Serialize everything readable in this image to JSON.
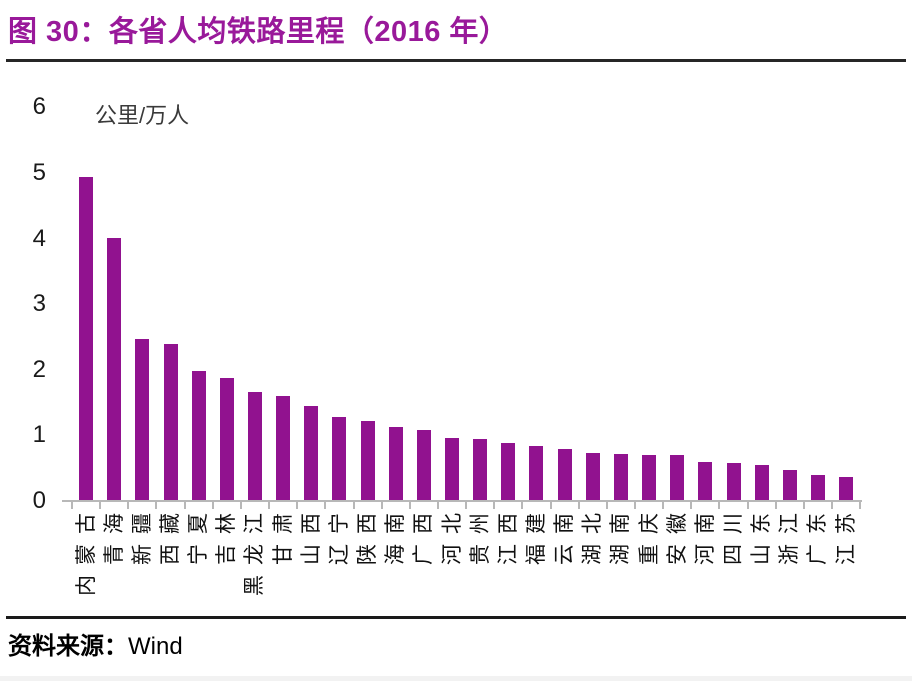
{
  "header": {
    "title": "图 30：各省人均铁路里程（2016 年）"
  },
  "chart_data": {
    "type": "bar",
    "title": "图 30：各省人均铁路里程（2016 年）",
    "xlabel": "",
    "ylabel": "公里/万人",
    "ylim": [
      0,
      6
    ],
    "yticks": [
      0,
      1,
      2,
      3,
      4,
      5,
      6
    ],
    "grid": false,
    "legend": "none",
    "bar_color": "#91128F",
    "categories": [
      "内蒙古",
      "青海",
      "新疆",
      "西藏",
      "宁夏",
      "吉林",
      "黑龙江",
      "甘肃",
      "山西",
      "辽宁",
      "陕西",
      "海南",
      "广西",
      "河北",
      "贵州",
      "江西",
      "福建",
      "云南",
      "湖北",
      "湖南",
      "重庆",
      "安徽",
      "河南",
      "四川",
      "山东",
      "浙江",
      "广东",
      "江苏"
    ],
    "values": [
      4.92,
      3.99,
      2.45,
      2.38,
      1.96,
      1.86,
      1.65,
      1.58,
      1.44,
      1.27,
      1.21,
      1.12,
      1.07,
      0.94,
      0.93,
      0.87,
      0.83,
      0.77,
      0.72,
      0.7,
      0.69,
      0.68,
      0.58,
      0.56,
      0.54,
      0.46,
      0.38,
      0.35
    ]
  },
  "footer": {
    "source_label": "资料来源：",
    "source_value": "Wind"
  }
}
